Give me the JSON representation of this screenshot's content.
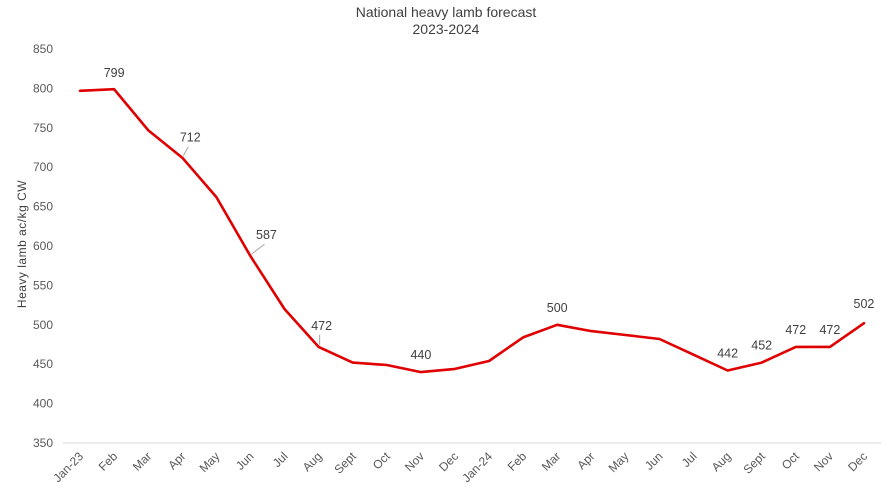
{
  "chart_data": {
    "type": "line",
    "title": "National heavy lamb forecast",
    "subtitle": "2023-2024",
    "xlabel": "",
    "ylabel": "Heavy lamb ac/kg CW",
    "ylim": [
      350,
      850
    ],
    "yticks": [
      350,
      400,
      450,
      500,
      550,
      600,
      650,
      700,
      750,
      800,
      850
    ],
    "grid": false,
    "categories": [
      "Jan-23",
      "Feb",
      "Mar",
      "Apr",
      "May",
      "Jun",
      "Jul",
      "Aug",
      "Sept",
      "Oct",
      "Nov",
      "Dec",
      "Jan-24",
      "Feb",
      "Mar",
      "Apr",
      "May",
      "Jun",
      "Jul",
      "Aug",
      "Sept",
      "Oct",
      "Nov",
      "Dec"
    ],
    "series": [
      {
        "color": "#e00000",
        "values": [
          797,
          799,
          747,
          712,
          662,
          587,
          520,
          472,
          452,
          449,
          440,
          444,
          454,
          484,
          500,
          492,
          487,
          482,
          462,
          442,
          452,
          472,
          472,
          502
        ]
      }
    ],
    "data_labels": [
      {
        "index": 1,
        "text": "799",
        "dx": 0,
        "dy": -12,
        "leader": false
      },
      {
        "index": 3,
        "text": "712",
        "dx": 8,
        "dy": -16,
        "leader": true
      },
      {
        "index": 5,
        "text": "587",
        "dx": 16,
        "dy": -17,
        "leader": true
      },
      {
        "index": 7,
        "text": "472",
        "dx": 3,
        "dy": -17,
        "leader": true
      },
      {
        "index": 10,
        "text": "440",
        "dx": 0,
        "dy": -13,
        "leader": false
      },
      {
        "index": 14,
        "text": "500",
        "dx": 0,
        "dy": -13,
        "leader": false
      },
      {
        "index": 19,
        "text": "442",
        "dx": 0,
        "dy": -13,
        "leader": false
      },
      {
        "index": 20,
        "text": "452",
        "dx": 0,
        "dy": -13,
        "leader": false
      },
      {
        "index": 21,
        "text": "472",
        "dx": 0,
        "dy": -13,
        "leader": false
      },
      {
        "index": 22,
        "text": "472",
        "dx": 0,
        "dy": -13,
        "leader": false
      },
      {
        "index": 23,
        "text": "502",
        "dx": 0,
        "dy": -15,
        "leader": false
      }
    ]
  }
}
